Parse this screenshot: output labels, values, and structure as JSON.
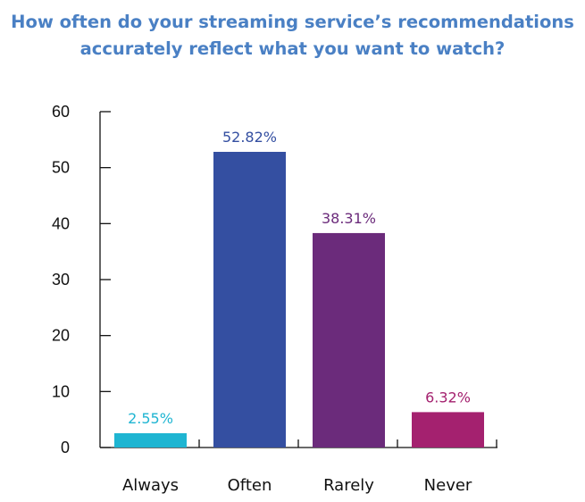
{
  "chart_data": {
    "type": "bar",
    "title": "How often do your streaming service’s recommendations accurately reflect what you want to watch?",
    "title_lines": [
      "How often do your streaming service’s recommendations",
      "accurately reflect what you want to watch?"
    ],
    "categories": [
      "Always",
      "Often",
      "Rarely",
      "Never"
    ],
    "values": [
      2.55,
      52.82,
      38.31,
      6.32
    ],
    "data_labels": [
      "2.55%",
      "52.82%",
      "38.31%",
      "6.32%"
    ],
    "colors": [
      "#1fb5d2",
      "#344fa1",
      "#6b2b7b",
      "#a4216f"
    ],
    "title_color": "#4a80c4",
    "ylim": [
      0,
      60
    ],
    "yticks": [
      0,
      10,
      20,
      30,
      40,
      50,
      60
    ],
    "xlabel": "",
    "ylabel": "",
    "grid": false,
    "legend": "none"
  }
}
